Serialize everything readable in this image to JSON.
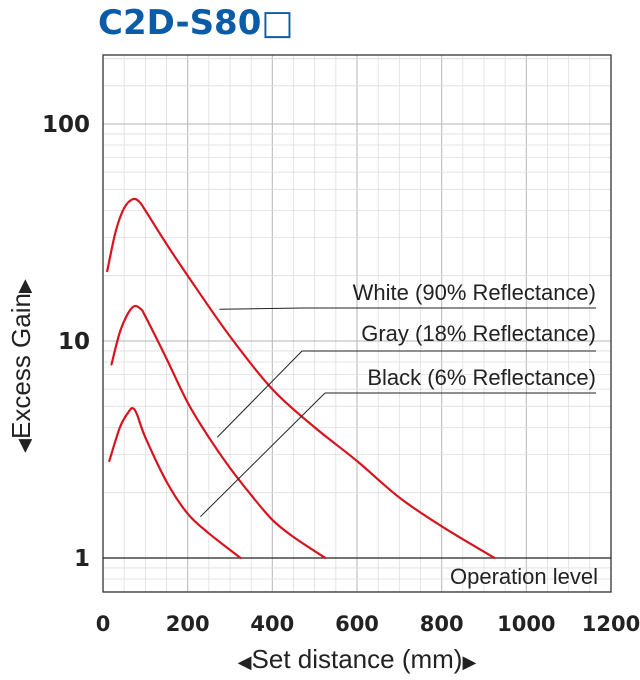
{
  "chart_data": {
    "type": "line",
    "title": "C2D-S80□",
    "xlabel": "Set distance (mm)",
    "ylabel": "Excess Gain",
    "x_axis_arrow_left": "◀",
    "x_axis_arrow_right": "▶",
    "y_axis_arrow_bottom": "◀",
    "y_axis_arrow_top": "▶",
    "xlim": [
      0,
      1200
    ],
    "ylim": [
      1,
      200
    ],
    "yscale": "log",
    "grid": true,
    "x_ticks": [
      0,
      200,
      400,
      600,
      800,
      1000,
      1200
    ],
    "x_tick_labels": [
      "0",
      "200",
      "400",
      "600",
      "800",
      "1000",
      "1200"
    ],
    "y_ticks": [
      1,
      10,
      100
    ],
    "y_tick_labels": [
      "1",
      "10",
      "100"
    ],
    "line_color": "#d7141e",
    "reference_line": {
      "y": 1,
      "label": "Operation level"
    },
    "series": [
      {
        "name": "White (90% Reflectance)",
        "x": [
          10,
          30,
          50,
          70,
          85,
          100,
          150,
          200,
          300,
          400,
          500,
          600,
          700,
          800,
          925
        ],
        "y": [
          21,
          32,
          41,
          45,
          44,
          40,
          28,
          20,
          10.5,
          6.0,
          4.0,
          2.8,
          1.9,
          1.4,
          1.0
        ]
      },
      {
        "name": "Gray (18% Reflectance)",
        "x": [
          20,
          40,
          60,
          75,
          90,
          100,
          150,
          200,
          250,
          300,
          350,
          400,
          450,
          525
        ],
        "y": [
          7.8,
          11,
          13.5,
          14.5,
          14,
          13,
          8.3,
          5.2,
          3.6,
          2.6,
          1.95,
          1.5,
          1.25,
          1.0
        ]
      },
      {
        "name": "Black (6% Reflectance)",
        "x": [
          15,
          40,
          60,
          70,
          80,
          100,
          150,
          200,
          250,
          325
        ],
        "y": [
          2.8,
          4.0,
          4.7,
          4.9,
          4.6,
          3.6,
          2.25,
          1.6,
          1.3,
          1.0
        ]
      }
    ],
    "annotations": [
      {
        "series": 0,
        "text": "White (90% Reflectance)",
        "x": 275,
        "y": 14
      },
      {
        "series": 1,
        "text": "Gray (18% Reflectance)",
        "x": 270,
        "y": 3.6
      },
      {
        "series": 2,
        "text": "Black (6% Reflectance)",
        "x": 230,
        "y": 1.55
      }
    ]
  }
}
